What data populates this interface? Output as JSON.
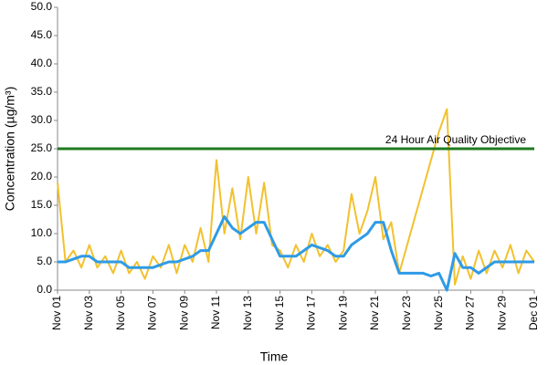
{
  "chart_data": {
    "type": "line",
    "xlabel": "Time",
    "ylabel": "Concentration (µg/m³)",
    "x": [
      0,
      0.5,
      1,
      1.5,
      2,
      2.5,
      3,
      3.5,
      4,
      4.5,
      5,
      5.5,
      6,
      6.5,
      7,
      7.5,
      8,
      8.5,
      9,
      9.5,
      10,
      10.5,
      11,
      11.5,
      12,
      12.5,
      13,
      13.5,
      14,
      14.5,
      15,
      15.5,
      16,
      16.5,
      17,
      17.5,
      18,
      18.5,
      19,
      19.5,
      20,
      20.5,
      21,
      21.5,
      22,
      22.5,
      23,
      23.5,
      24,
      24.5,
      25,
      25.5,
      26,
      26.5,
      27,
      27.5,
      28,
      28.5,
      29,
      29.5,
      30
    ],
    "series": [
      {
        "color": "#f2c12e",
        "values": [
          19,
          5,
          7,
          4,
          8,
          4,
          6,
          3,
          7,
          3,
          5,
          2,
          6,
          4,
          8,
          3,
          8,
          5,
          11,
          5,
          23,
          10,
          18,
          9,
          20,
          10,
          19,
          8,
          7,
          4,
          8,
          5,
          10,
          6,
          8,
          5,
          7,
          17,
          10,
          14,
          20,
          9,
          12,
          3,
          8,
          13,
          18,
          23,
          28,
          32,
          1,
          6,
          2,
          7,
          3,
          7,
          4,
          8,
          3,
          7,
          5
        ]
      },
      {
        "color": "#2e9be6",
        "values": [
          5,
          5,
          5.5,
          6,
          6,
          5,
          5,
          5,
          5,
          4,
          4,
          4,
          4,
          4.5,
          5,
          5,
          5.5,
          6,
          7,
          7,
          10,
          13,
          11,
          10,
          11,
          12,
          12,
          9,
          6,
          6,
          6,
          7,
          8,
          7.5,
          7,
          6,
          6,
          8,
          9,
          10,
          12,
          12,
          7,
          3,
          3,
          3,
          3,
          2.5,
          3,
          0,
          6.5,
          4,
          4,
          3,
          4,
          5,
          5,
          5,
          5,
          5,
          5
        ]
      }
    ],
    "objective": {
      "label": "24 Hour Air Quality Objective",
      "value": 25,
      "color": "#1f7a1f"
    },
    "xlim": [
      0,
      30
    ],
    "xticks": [
      {
        "value": 0,
        "label": "Nov 01"
      },
      {
        "value": 2,
        "label": "Nov 03"
      },
      {
        "value": 4,
        "label": "Nov 05"
      },
      {
        "value": 6,
        "label": "Nov 07"
      },
      {
        "value": 8,
        "label": "Nov 09"
      },
      {
        "value": 10,
        "label": "Nov 11"
      },
      {
        "value": 12,
        "label": "Nov 13"
      },
      {
        "value": 14,
        "label": "Nov 15"
      },
      {
        "value": 16,
        "label": "Nov 17"
      },
      {
        "value": 18,
        "label": "Nov 19"
      },
      {
        "value": 20,
        "label": "Nov 21"
      },
      {
        "value": 22,
        "label": "Nov 23"
      },
      {
        "value": 24,
        "label": "Nov 25"
      },
      {
        "value": 26,
        "label": "Nov 27"
      },
      {
        "value": 28,
        "label": "Nov 29"
      },
      {
        "value": 30,
        "label": "Dec 01"
      }
    ],
    "ylim": [
      0,
      50
    ],
    "yticks": [
      {
        "value": 0,
        "label": "0.0"
      },
      {
        "value": 5,
        "label": "5.0"
      },
      {
        "value": 10,
        "label": "10.0"
      },
      {
        "value": 15,
        "label": "15.0"
      },
      {
        "value": 20,
        "label": "20.0"
      },
      {
        "value": 25,
        "label": "25.0"
      },
      {
        "value": 30,
        "label": "30.0"
      },
      {
        "value": 35,
        "label": "35.0"
      },
      {
        "value": 40,
        "label": "40.0"
      },
      {
        "value": 45,
        "label": "45.0"
      },
      {
        "value": 50,
        "label": "50.0"
      }
    ],
    "grid": false
  }
}
